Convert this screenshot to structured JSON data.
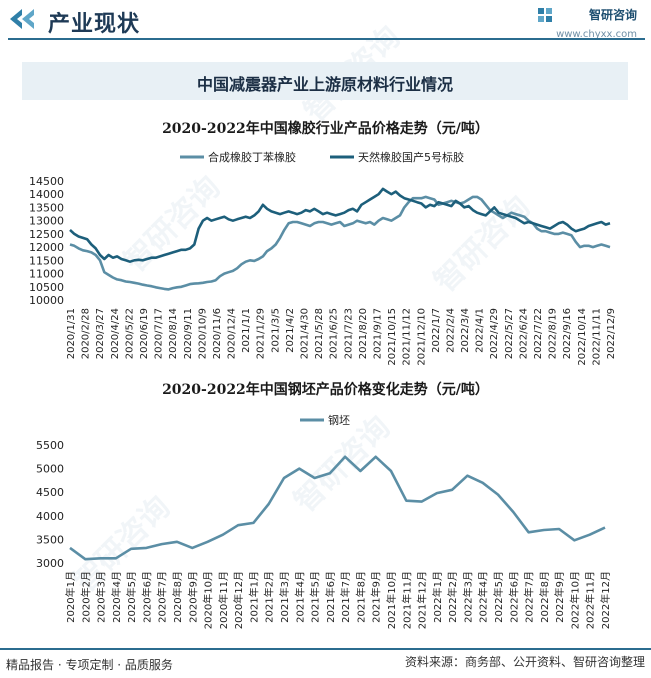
{
  "header": {
    "title": "产业现状",
    "brand_name": "智研咨询",
    "brand_url": "www.chyxx.com"
  },
  "banner": {
    "title": "中国减震器产业上游原材料行业情况"
  },
  "watermark": {
    "text": "智研咨询"
  },
  "chart_data": [
    {
      "type": "line",
      "title": "2020-2022年中国橡胶行业产品价格走势（元/吨）",
      "ylim": [
        10000,
        14500
      ],
      "yticks": [
        10000,
        10500,
        11000,
        11500,
        12000,
        12500,
        13000,
        13500,
        14000,
        14500
      ],
      "x_tick_labels": [
        "2020/1/31",
        "2020/2/28",
        "2020/3/27",
        "2020/4/24",
        "2020/5/22",
        "2020/6/19",
        "2020/7/17",
        "2020/8/14",
        "2020/9/11",
        "2020/10/9",
        "2020/11/6",
        "2020/12/4",
        "2021/1/1",
        "2021/1/29",
        "2021/3/5",
        "2021/4/2",
        "2021/4/30",
        "2021/5/28",
        "2021/6/25",
        "2021/7/23",
        "2021/8/20",
        "2021/9/17",
        "2021/10/15",
        "2021/11/12",
        "2021/12/10",
        "2022/1/7",
        "2022/2/4",
        "2022/3/4",
        "2022/4/1",
        "2022/4/29",
        "2022/5/27",
        "2022/6/24",
        "2022/7/22",
        "2022/8/19",
        "2022/9/16",
        "2022/10/14",
        "2022/11/11",
        "2022/12/9"
      ],
      "series": [
        {
          "name": "合成橡胶丁苯橡胶",
          "color": "#5b8ea5",
          "values": [
            12100,
            12050,
            11950,
            11880,
            11850,
            11800,
            11700,
            11500,
            11050,
            10950,
            10850,
            10780,
            10750,
            10700,
            10680,
            10650,
            10620,
            10580,
            10550,
            10520,
            10480,
            10450,
            10420,
            10400,
            10450,
            10480,
            10500,
            10550,
            10600,
            10620,
            10630,
            10650,
            10680,
            10700,
            10750,
            10900,
            11000,
            11050,
            11100,
            11200,
            11350,
            11450,
            11500,
            11480,
            11550,
            11650,
            11850,
            11950,
            12100,
            12350,
            12650,
            12900,
            12950,
            12950,
            12900,
            12850,
            12800,
            12900,
            12950,
            12950,
            12900,
            12850,
            12900,
            12950,
            12800,
            12850,
            12900,
            13000,
            12950,
            12900,
            12950,
            12850,
            13000,
            13100,
            13050,
            13000,
            13100,
            13200,
            13500,
            13700,
            13850,
            13850,
            13850,
            13900,
            13850,
            13800,
            13600,
            13650,
            13700,
            13750,
            13700,
            13650,
            13700,
            13800,
            13900,
            13900,
            13800,
            13600,
            13400,
            13300,
            13200,
            13100,
            13200,
            13300,
            13250,
            13200,
            13150,
            13000,
            12900,
            12700,
            12600,
            12600,
            12550,
            12500,
            12500,
            12550,
            12500,
            12450,
            12200,
            12000,
            12050,
            12050,
            12000,
            12050,
            12100,
            12050,
            12000
          ]
        },
        {
          "name": "天然橡胶国产5号标胶",
          "color": "#1d5f7b",
          "values": [
            12650,
            12500,
            12400,
            12350,
            12300,
            12100,
            11950,
            11700,
            11550,
            11700,
            11600,
            11650,
            11550,
            11500,
            11450,
            11500,
            11520,
            11500,
            11550,
            11600,
            11600,
            11650,
            11700,
            11750,
            11800,
            11850,
            11900,
            11900,
            11950,
            12100,
            12700,
            13000,
            13100,
            13000,
            13050,
            13100,
            13150,
            13050,
            13000,
            13050,
            13100,
            13150,
            13100,
            13200,
            13350,
            13600,
            13450,
            13350,
            13300,
            13250,
            13300,
            13350,
            13300,
            13250,
            13300,
            13400,
            13350,
            13450,
            13350,
            13250,
            13300,
            13250,
            13200,
            13250,
            13300,
            13400,
            13450,
            13350,
            13600,
            13700,
            13800,
            13900,
            14000,
            14200,
            14100,
            14000,
            14100,
            13950,
            13850,
            13800,
            13750,
            13700,
            13650,
            13500,
            13600,
            13550,
            13700,
            13650,
            13600,
            13550,
            13750,
            13650,
            13500,
            13550,
            13400,
            13300,
            13250,
            13200,
            13350,
            13500,
            13300,
            13250,
            13200,
            13150,
            13100,
            13000,
            12900,
            12950,
            12900,
            12850,
            12800,
            12750,
            12700,
            12800,
            12900,
            12950,
            12850,
            12700,
            12600,
            12650,
            12700,
            12800,
            12850,
            12900,
            12950,
            12850,
            12900
          ]
        }
      ],
      "legend": "top"
    },
    {
      "type": "line",
      "title": "2020-2022年中国钢坯产品价格变化走势（元/吨）",
      "ylim": [
        3000,
        5500
      ],
      "yticks": [
        3000,
        3500,
        4000,
        4500,
        5000,
        5500
      ],
      "categories": [
        "2020年1月",
        "2020年2月",
        "2020年3月",
        "2020年4月",
        "2020年5月",
        "2020年6月",
        "2020年7月",
        "2020年8月",
        "2020年9月",
        "2020年10月",
        "2020年11月",
        "2020年12月",
        "2021年1月",
        "2021年2月",
        "2021年3月",
        "2021年4月",
        "2021年5月",
        "2021年6月",
        "2021年7月",
        "2021年8月",
        "2021年9月",
        "2021年10月",
        "2021年11月",
        "2021年12月",
        "2022年1月",
        "2022年2月",
        "2022年3月",
        "2022年4月",
        "2022年5月",
        "2022年6月",
        "2022年7月",
        "2022年8月",
        "2022年9月",
        "2022年10月",
        "2022年11月",
        "2022年12月"
      ],
      "series": [
        {
          "name": "钢坯",
          "color": "#5b8ea5",
          "values": [
            3320,
            3080,
            3100,
            3100,
            3300,
            3320,
            3400,
            3450,
            3320,
            3450,
            3600,
            3800,
            3850,
            4250,
            4800,
            5000,
            4800,
            4900,
            5250,
            4950,
            5250,
            4950,
            4320,
            4300,
            4480,
            4550,
            4850,
            4700,
            4450,
            4080,
            3650,
            3700,
            3720,
            3480,
            3600,
            3750
          ]
        }
      ],
      "legend": "top"
    }
  ],
  "footer": {
    "left": "精品报告 · 专项定制 · 品质服务",
    "right": "资料来源：商务部、公开资料、智研咨询整理"
  }
}
